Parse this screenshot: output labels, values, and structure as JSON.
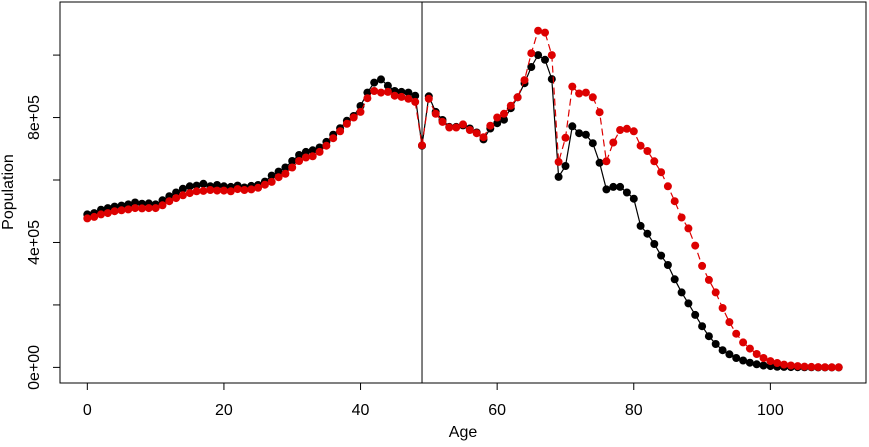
{
  "chart_data": {
    "type": "line",
    "xlabel": "Age",
    "ylabel": "Population",
    "xlim": [
      -4,
      114
    ],
    "ylim": [
      -50000,
      1170000
    ],
    "x_ticks": [
      {
        "value": 0,
        "label": "0"
      },
      {
        "value": 20,
        "label": "20"
      },
      {
        "value": 40,
        "label": "40"
      },
      {
        "value": 60,
        "label": "60"
      },
      {
        "value": 80,
        "label": "80"
      },
      {
        "value": 100,
        "label": "100"
      }
    ],
    "y_ticks": [
      {
        "value": 0,
        "label": "0e+00"
      },
      {
        "value": 200000,
        "label": ""
      },
      {
        "value": 400000,
        "label": "4e+05"
      },
      {
        "value": 600000,
        "label": ""
      },
      {
        "value": 800000,
        "label": "8e+05"
      },
      {
        "value": 1000000,
        "label": ""
      }
    ],
    "vline": 49,
    "grid": false,
    "legend": "none",
    "series": [
      {
        "color": "#000000",
        "line_style": "solid",
        "x": [
          0,
          1,
          2,
          3,
          4,
          5,
          6,
          7,
          8,
          9,
          10,
          11,
          12,
          13,
          14,
          15,
          16,
          17,
          18,
          19,
          20,
          21,
          22,
          23,
          24,
          25,
          26,
          27,
          28,
          29,
          30,
          31,
          32,
          33,
          34,
          35,
          36,
          37,
          38,
          39,
          40,
          41,
          42,
          43,
          44,
          45,
          46,
          47,
          48,
          49,
          50,
          51,
          52,
          53,
          54,
          55,
          56,
          57,
          58,
          59,
          60,
          61,
          62,
          63,
          64,
          65,
          66,
          67,
          68,
          69,
          70,
          71,
          72,
          73,
          74,
          75,
          76,
          77,
          78,
          79,
          80,
          81,
          82,
          83,
          84,
          85,
          86,
          87,
          88,
          89,
          90,
          91,
          92,
          93,
          94,
          95,
          96,
          97,
          98,
          99,
          100,
          101,
          102,
          103,
          104,
          105,
          106,
          107,
          108,
          109,
          110
        ],
        "y": [
          490000,
          494000,
          505000,
          510000,
          515000,
          518000,
          522000,
          528000,
          524000,
          525000,
          522000,
          535000,
          548000,
          560000,
          572000,
          580000,
          582000,
          588000,
          580000,
          584000,
          580000,
          578000,
          582000,
          576000,
          581000,
          584000,
          595000,
          614000,
          627000,
          640000,
          661000,
          680000,
          690000,
          695000,
          704000,
          722000,
          745000,
          766000,
          790000,
          805000,
          837000,
          880000,
          912000,
          922000,
          902000,
          885000,
          882000,
          880000,
          870000,
          710000,
          868000,
          818000,
          792000,
          770000,
          770000,
          775000,
          765000,
          752000,
          730000,
          765000,
          782000,
          793000,
          830000,
          865000,
          910000,
          962000,
          1000000,
          985000,
          923000,
          610000,
          645000,
          772000,
          750000,
          745000,
          718000,
          655000,
          570000,
          578000,
          578000,
          560000,
          540000,
          453000,
          428000,
          395000,
          358000,
          328000,
          282000,
          240000,
          205000,
          168000,
          132000,
          100000,
          75000,
          55000,
          42000,
          30000,
          22000,
          15000,
          10000,
          6000,
          4000,
          2000,
          1500,
          1000,
          700,
          400,
          200,
          100,
          50,
          20,
          10
        ]
      },
      {
        "color": "#dd0000",
        "line_style": "dashed",
        "x": [
          0,
          1,
          2,
          3,
          4,
          5,
          6,
          7,
          8,
          9,
          10,
          11,
          12,
          13,
          14,
          15,
          16,
          17,
          18,
          19,
          20,
          21,
          22,
          23,
          24,
          25,
          26,
          27,
          28,
          29,
          30,
          31,
          32,
          33,
          34,
          35,
          36,
          37,
          38,
          39,
          40,
          41,
          42,
          43,
          44,
          45,
          46,
          47,
          48,
          49,
          50,
          51,
          52,
          53,
          54,
          55,
          56,
          57,
          58,
          59,
          60,
          61,
          62,
          63,
          64,
          65,
          66,
          67,
          68,
          69,
          70,
          71,
          72,
          73,
          74,
          75,
          76,
          77,
          78,
          79,
          80,
          81,
          82,
          83,
          84,
          85,
          86,
          87,
          88,
          89,
          90,
          91,
          92,
          93,
          94,
          95,
          96,
          97,
          98,
          99,
          100,
          101,
          102,
          103,
          104,
          105,
          106,
          107,
          108,
          109,
          110
        ],
        "y": [
          477000,
          482000,
          490000,
          494000,
          500000,
          503000,
          506000,
          510000,
          509000,
          510000,
          510000,
          519000,
          532000,
          542000,
          551000,
          558000,
          564000,
          565000,
          568000,
          566000,
          566000,
          564000,
          571000,
          568000,
          570000,
          575000,
          585000,
          594000,
          609000,
          620000,
          640000,
          661000,
          672000,
          676000,
          690000,
          710000,
          734000,
          756000,
          780000,
          800000,
          818000,
          862000,
          885000,
          880000,
          882000,
          870000,
          866000,
          860000,
          850000,
          711000,
          860000,
          812000,
          786000,
          768000,
          768000,
          778000,
          760000,
          750000,
          737000,
          774000,
          800000,
          812000,
          838000,
          865000,
          920000,
          1006000,
          1078000,
          1072000,
          1000000,
          658000,
          735000,
          899000,
          877000,
          880000,
          865000,
          817000,
          660000,
          720000,
          760000,
          764000,
          756000,
          710000,
          693000,
          660000,
          625000,
          580000,
          532000,
          480000,
          445000,
          390000,
          325000,
          280000,
          240000,
          190000,
          145000,
          108000,
          80000,
          60000,
          43000,
          30000,
          20000,
          14000,
          9000,
          6000,
          4000,
          2500,
          1500,
          900,
          500,
          300,
          150
        ]
      }
    ]
  }
}
